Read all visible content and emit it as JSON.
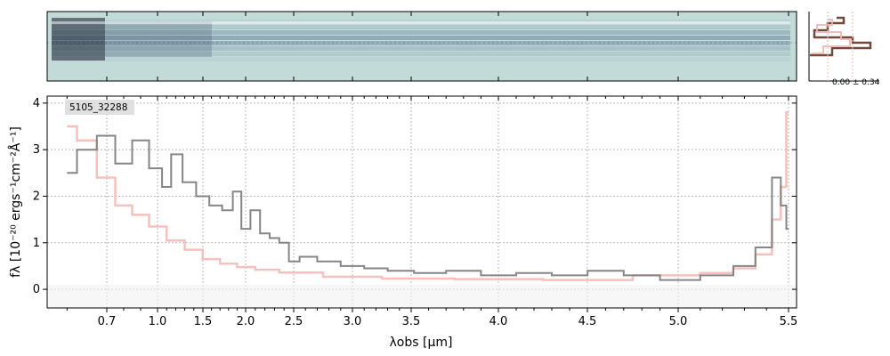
{
  "chart_data": {
    "type": "line",
    "title": "",
    "object_label": "5105_32288",
    "xlabel": "λobs [μm]",
    "ylabel": "fλ [10⁻²⁰ ergs⁻¹cm⁻²Å⁻¹]",
    "xlim": [
      0.55,
      5.52
    ],
    "ylim": [
      -0.4,
      4.15
    ],
    "x_scale": "custom (stretched at short wavelengths)",
    "x_ticks": [
      0.7,
      1.0,
      1.5,
      2.0,
      2.5,
      3.0,
      3.5,
      4.0,
      4.5,
      5.0,
      5.5
    ],
    "x_tick_labels": [
      "0.7",
      "1.0",
      "1.5",
      "2.0",
      "2.5",
      "3.0",
      "3.5",
      "4.0",
      "4.5",
      "5.0",
      "5.5"
    ],
    "y_ticks": [
      0,
      1,
      2,
      3,
      4
    ],
    "y_tick_labels": [
      "0",
      "1",
      "2",
      "3",
      "4"
    ],
    "grid": true,
    "series": [
      {
        "color": "#808080",
        "x": [
          0.6,
          0.65,
          0.7,
          0.8,
          0.9,
          1.0,
          1.1,
          1.2,
          1.35,
          1.5,
          1.65,
          1.8,
          1.9,
          2.0,
          2.1,
          2.2,
          2.3,
          2.4,
          2.5,
          2.6,
          2.8,
          3.0,
          3.2,
          3.4,
          3.6,
          3.8,
          4.0,
          4.2,
          4.4,
          4.6,
          4.8,
          5.0,
          5.2,
          5.3,
          5.4,
          5.45,
          5.48,
          5.5
        ],
        "y": [
          2.5,
          3.0,
          3.3,
          2.7,
          3.2,
          2.6,
          2.2,
          2.9,
          2.3,
          2.0,
          1.8,
          1.7,
          2.1,
          1.3,
          1.7,
          1.2,
          1.1,
          1.0,
          0.6,
          0.7,
          0.6,
          0.5,
          0.45,
          0.4,
          0.35,
          0.4,
          0.3,
          0.35,
          0.3,
          0.4,
          0.3,
          0.2,
          0.3,
          0.5,
          0.9,
          2.4,
          1.8,
          1.3
        ]
      },
      {
        "color": "#f4b6b2",
        "x": [
          0.6,
          0.65,
          0.7,
          0.8,
          0.9,
          1.0,
          1.2,
          1.4,
          1.6,
          1.8,
          2.0,
          2.2,
          2.5,
          3.0,
          3.5,
          4.0,
          4.5,
          5.0,
          5.2,
          5.3,
          5.4,
          5.45,
          5.48,
          5.5
        ],
        "y": [
          3.5,
          3.2,
          2.4,
          1.8,
          1.6,
          1.35,
          1.05,
          0.85,
          0.65,
          0.55,
          0.48,
          0.42,
          0.36,
          0.27,
          0.23,
          0.22,
          0.2,
          0.3,
          0.35,
          0.45,
          0.75,
          1.5,
          2.2,
          3.8
        ]
      }
    ],
    "inset": {
      "label": "0.00 ± 0.34"
    },
    "colors": {
      "observed": "#808080",
      "model": "#f4b6b2",
      "spectrum_background": "#c2dad8",
      "spectrum_trace": "#2a4a78",
      "inset_thick": "#6e4a3a",
      "inset_thin": "#f4b6b2",
      "grid": "#b8b8b8"
    }
  }
}
